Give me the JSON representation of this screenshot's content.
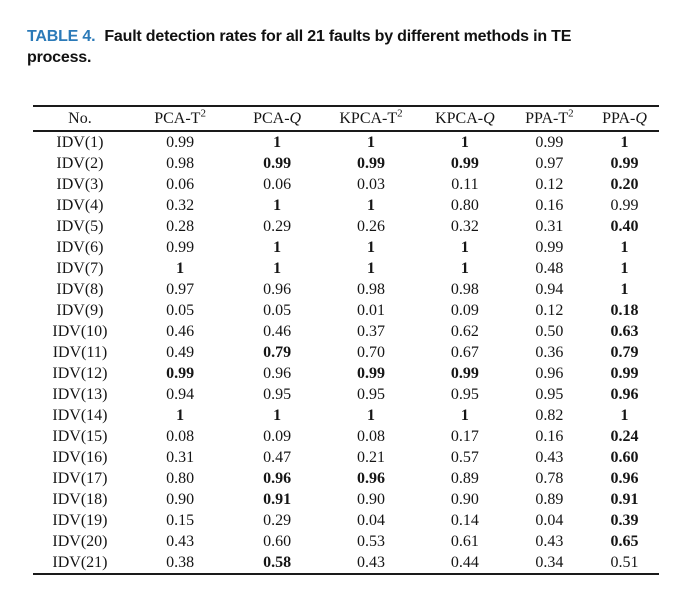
{
  "colors": {
    "caption_accent": "#2b7ab8",
    "text": "#151515",
    "rule": "#1a1a1a",
    "background": "#ffffff"
  },
  "caption": {
    "label": "TABLE 4.",
    "rest_line1": "Fault detection rates for all 21 faults by different methods in TE",
    "line2": "process."
  },
  "table": {
    "headers": [
      {
        "base": "No.",
        "sup": "",
        "italic": ""
      },
      {
        "base": "PCA-T",
        "sup": "2",
        "italic": ""
      },
      {
        "base": "PCA-",
        "sup": "",
        "italic": "Q"
      },
      {
        "base": "KPCA-T",
        "sup": "2",
        "italic": ""
      },
      {
        "base": "KPCA-",
        "sup": "",
        "italic": "Q"
      },
      {
        "base": "PPA-T",
        "sup": "2",
        "italic": ""
      },
      {
        "base": "PPA-",
        "sup": "",
        "italic": "Q"
      }
    ],
    "rows": [
      {
        "no": "IDV(1)",
        "values": [
          "0.99",
          "1",
          "1",
          "1",
          "0.99",
          "1"
        ],
        "bold": [
          false,
          true,
          true,
          true,
          false,
          true
        ]
      },
      {
        "no": "IDV(2)",
        "values": [
          "0.98",
          "0.99",
          "0.99",
          "0.99",
          "0.97",
          "0.99"
        ],
        "bold": [
          false,
          true,
          true,
          true,
          false,
          true
        ]
      },
      {
        "no": "IDV(3)",
        "values": [
          "0.06",
          "0.06",
          "0.03",
          "0.11",
          "0.12",
          "0.20"
        ],
        "bold": [
          false,
          false,
          false,
          false,
          false,
          true
        ]
      },
      {
        "no": "IDV(4)",
        "values": [
          "0.32",
          "1",
          "1",
          "0.80",
          "0.16",
          "0.99"
        ],
        "bold": [
          false,
          true,
          true,
          false,
          false,
          false
        ]
      },
      {
        "no": "IDV(5)",
        "values": [
          "0.28",
          "0.29",
          "0.26",
          "0.32",
          "0.31",
          "0.40"
        ],
        "bold": [
          false,
          false,
          false,
          false,
          false,
          true
        ]
      },
      {
        "no": "IDV(6)",
        "values": [
          "0.99",
          "1",
          "1",
          "1",
          "0.99",
          "1"
        ],
        "bold": [
          false,
          true,
          true,
          true,
          false,
          true
        ]
      },
      {
        "no": "IDV(7)",
        "values": [
          "1",
          "1",
          "1",
          "1",
          "0.48",
          "1"
        ],
        "bold": [
          true,
          true,
          true,
          true,
          false,
          true
        ]
      },
      {
        "no": "IDV(8)",
        "values": [
          "0.97",
          "0.96",
          "0.98",
          "0.98",
          "0.94",
          "1"
        ],
        "bold": [
          false,
          false,
          false,
          false,
          false,
          true
        ]
      },
      {
        "no": "IDV(9)",
        "values": [
          "0.05",
          "0.05",
          "0.01",
          "0.09",
          "0.12",
          "0.18"
        ],
        "bold": [
          false,
          false,
          false,
          false,
          false,
          true
        ]
      },
      {
        "no": "IDV(10)",
        "values": [
          "0.46",
          "0.46",
          "0.37",
          "0.62",
          "0.50",
          "0.63"
        ],
        "bold": [
          false,
          false,
          false,
          false,
          false,
          true
        ]
      },
      {
        "no": "IDV(11)",
        "values": [
          "0.49",
          "0.79",
          "0.70",
          "0.67",
          "0.36",
          "0.79"
        ],
        "bold": [
          false,
          true,
          false,
          false,
          false,
          true
        ]
      },
      {
        "no": "IDV(12)",
        "values": [
          "0.99",
          "0.96",
          "0.99",
          "0.99",
          "0.96",
          "0.99"
        ],
        "bold": [
          true,
          false,
          true,
          true,
          false,
          true
        ]
      },
      {
        "no": "IDV(13)",
        "values": [
          "0.94",
          "0.95",
          "0.95",
          "0.95",
          "0.95",
          "0.96"
        ],
        "bold": [
          false,
          false,
          false,
          false,
          false,
          true
        ]
      },
      {
        "no": "IDV(14)",
        "values": [
          "1",
          "1",
          "1",
          "1",
          "0.82",
          "1"
        ],
        "bold": [
          true,
          true,
          true,
          true,
          false,
          true
        ]
      },
      {
        "no": "IDV(15)",
        "values": [
          "0.08",
          "0.09",
          "0.08",
          "0.17",
          "0.16",
          "0.24"
        ],
        "bold": [
          false,
          false,
          false,
          false,
          false,
          true
        ]
      },
      {
        "no": "IDV(16)",
        "values": [
          "0.31",
          "0.47",
          "0.21",
          "0.57",
          "0.43",
          "0.60"
        ],
        "bold": [
          false,
          false,
          false,
          false,
          false,
          true
        ]
      },
      {
        "no": "IDV(17)",
        "values": [
          "0.80",
          "0.96",
          "0.96",
          "0.89",
          "0.78",
          "0.96"
        ],
        "bold": [
          false,
          true,
          true,
          false,
          false,
          true
        ]
      },
      {
        "no": "IDV(18)",
        "values": [
          "0.90",
          "0.91",
          "0.90",
          "0.90",
          "0.89",
          "0.91"
        ],
        "bold": [
          false,
          true,
          false,
          false,
          false,
          true
        ]
      },
      {
        "no": "IDV(19)",
        "values": [
          "0.15",
          "0.29",
          "0.04",
          "0.14",
          "0.04",
          "0.39"
        ],
        "bold": [
          false,
          false,
          false,
          false,
          false,
          true
        ]
      },
      {
        "no": "IDV(20)",
        "values": [
          "0.43",
          "0.60",
          "0.53",
          "0.61",
          "0.43",
          "0.65"
        ],
        "bold": [
          false,
          false,
          false,
          false,
          false,
          true
        ]
      },
      {
        "no": "IDV(21)",
        "values": [
          "0.38",
          "0.58",
          "0.43",
          "0.44",
          "0.34",
          "0.51"
        ],
        "bold": [
          false,
          true,
          false,
          false,
          false,
          false
        ]
      }
    ]
  }
}
